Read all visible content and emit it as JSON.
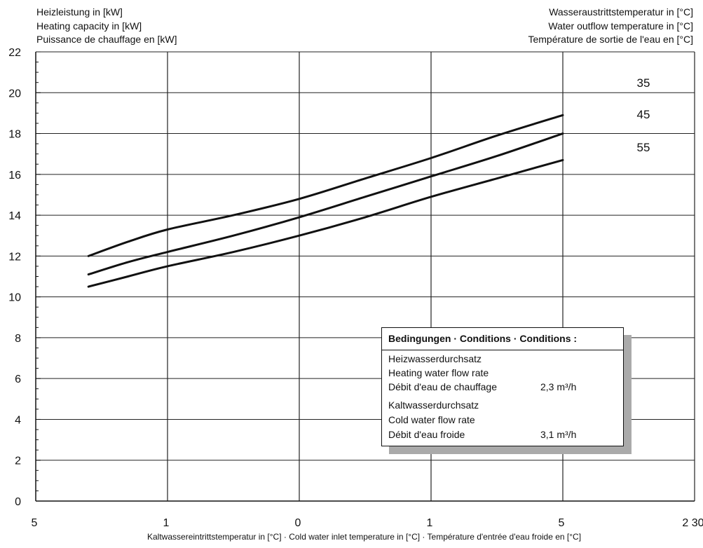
{
  "chart_data": {
    "type": "line",
    "y_axis_title_lines": [
      "Heizleistung in [kW]",
      "Heating capacity in [kW]",
      "Puissance de chauffage en [kW]"
    ],
    "legend_title_lines": [
      "Wasseraustrittstemperatur in [°C]",
      "Water outflow temperature in [°C]",
      "Température de sortie de l'eau en [°C]"
    ],
    "xlabel": "Kaltwassereintrittstemperatur in [°C] · Cold water inlet temperature in [°C] · Température d'entrée d'eau froide en [°C]",
    "x_ticks": [
      0,
      1,
      2,
      3,
      4,
      5
    ],
    "x_tick_labels": [
      "5",
      "1",
      "0",
      "1",
      "5",
      "2 30"
    ],
    "ylim": [
      0,
      22
    ],
    "y_ticks": [
      0,
      2,
      4,
      6,
      8,
      10,
      12,
      14,
      16,
      18,
      20,
      22
    ],
    "grid": true,
    "series": [
      {
        "name": "35",
        "x": [
          0.4,
          0.7,
          1.0,
          1.5,
          2.0,
          2.5,
          3.0,
          3.5,
          4.0
        ],
        "values": [
          12.0,
          12.7,
          13.3,
          14.0,
          14.8,
          15.8,
          16.8,
          17.9,
          18.9
        ]
      },
      {
        "name": "45",
        "x": [
          0.4,
          0.7,
          1.0,
          1.5,
          2.0,
          2.5,
          3.0,
          3.5,
          4.0
        ],
        "values": [
          11.1,
          11.7,
          12.2,
          13.0,
          13.9,
          14.9,
          15.9,
          16.9,
          18.0
        ]
      },
      {
        "name": "55",
        "x": [
          0.4,
          0.7,
          1.0,
          1.5,
          2.0,
          2.5,
          3.0,
          3.5,
          4.0
        ],
        "values": [
          10.5,
          11.0,
          11.5,
          12.2,
          13.0,
          13.9,
          14.9,
          15.8,
          16.7
        ]
      }
    ]
  },
  "conditions": {
    "title": "Bedingungen · Conditions · Conditions :",
    "heating_lines": [
      "Heizwasserdurchsatz",
      "Heating water flow rate",
      "Débit d'eau de chauffage"
    ],
    "heating_value": "2,3 m³/h",
    "cold_lines": [
      "Kaltwasserdurchsatz",
      "Cold water flow rate",
      "Débit d'eau froide"
    ],
    "cold_value": "3,1 m³/h"
  }
}
